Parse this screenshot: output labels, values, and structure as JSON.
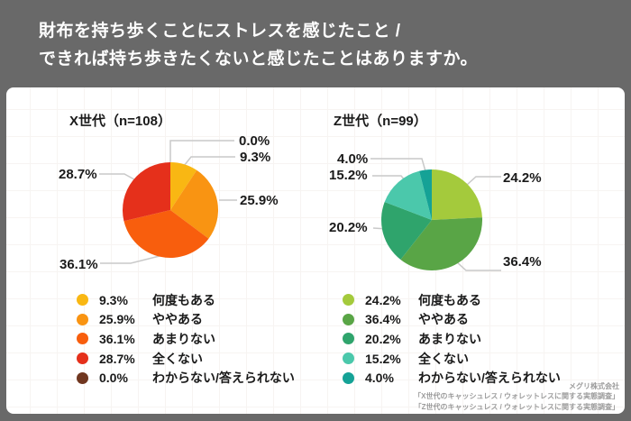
{
  "header": {
    "title_line1": "財布を持ち歩くことにストレスを感じたこと /",
    "title_line2": "できれば持ち歩きたくないと感じたことはありますか。"
  },
  "chart_data": [
    {
      "type": "pie",
      "title": "X世代（n=108）",
      "n": 108,
      "labels": [
        "何度もある",
        "ややある",
        "あまりない",
        "全くない",
        "わからない/答えられない"
      ],
      "values": [
        9.3,
        25.9,
        36.1,
        28.7,
        0.0
      ],
      "colors": [
        "#F9B713",
        "#F99412",
        "#F85E0D",
        "#E5301B",
        "#70361F"
      ],
      "start_angle": 0,
      "direction": "clockwise",
      "legend_position": "bottom"
    },
    {
      "type": "pie",
      "title": "Z世代（n=99）",
      "n": 99,
      "labels": [
        "何度もある",
        "ややある",
        "あまりない",
        "全くない",
        "わからない/答えられない"
      ],
      "values": [
        24.2,
        36.4,
        20.2,
        15.2,
        4.0
      ],
      "colors": [
        "#A4CA3C",
        "#59A546",
        "#2FA46C",
        "#4BC8AB",
        "#15A296"
      ],
      "start_angle": 0,
      "direction": "clockwise",
      "legend_position": "bottom"
    }
  ],
  "footer": {
    "company": "メグリ株式会社",
    "sources": [
      "「X世代のキャッシュレス / ウォレットレスに関する実態調査」",
      "「Z世代のキャッシュレス / ウォレットレスに関する実態調査」"
    ]
  }
}
